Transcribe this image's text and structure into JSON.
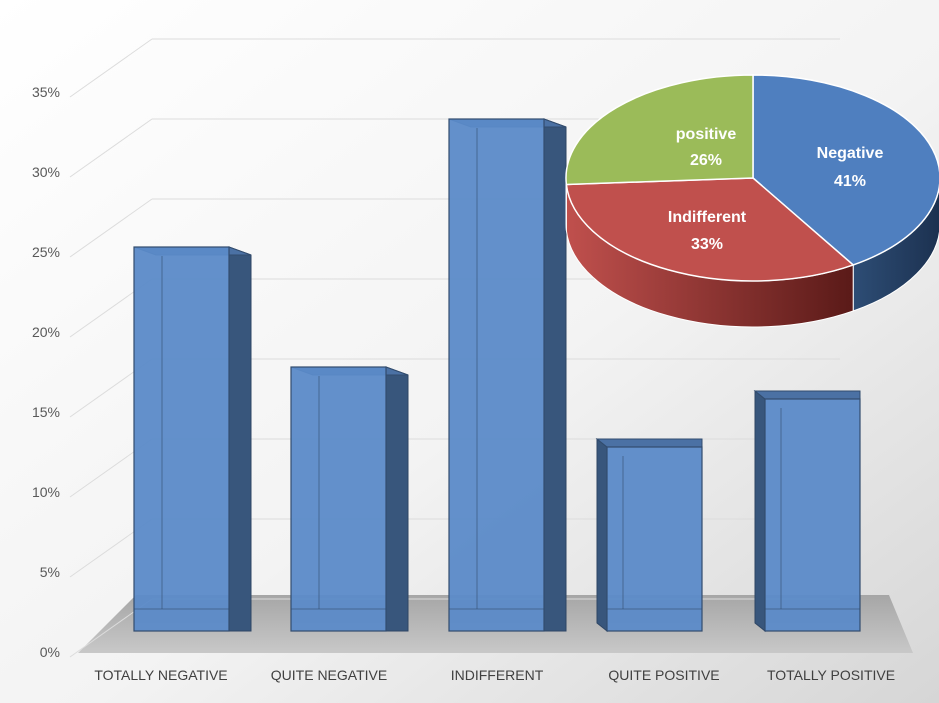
{
  "chart_data": [
    {
      "type": "bar",
      "categories": [
        "TOTALLY NEGATIVE",
        "QUITE NEGATIVE",
        "INDIFFERENT",
        "QUITE POSITIVE",
        "TOTALLY POSITIVE"
      ],
      "values": [
        24,
        16.5,
        32,
        11.5,
        14.5
      ],
      "ylim": [
        0,
        35
      ],
      "yticks": [
        "0%",
        "5%",
        "10%",
        "15%",
        "20%",
        "25%",
        "30%",
        "35%"
      ],
      "grid": true,
      "color": "#5b8ac8"
    },
    {
      "type": "pie",
      "slices": [
        {
          "label": "Negative",
          "percent_label": "41%",
          "value": 41,
          "color": "#4f7fbf"
        },
        {
          "label": "Indifferent",
          "percent_label": "33%",
          "value": 33,
          "color": "#c0504d"
        },
        {
          "label": "positive",
          "percent_label": "26%",
          "value": 26,
          "color": "#9bbb59"
        }
      ]
    }
  ]
}
